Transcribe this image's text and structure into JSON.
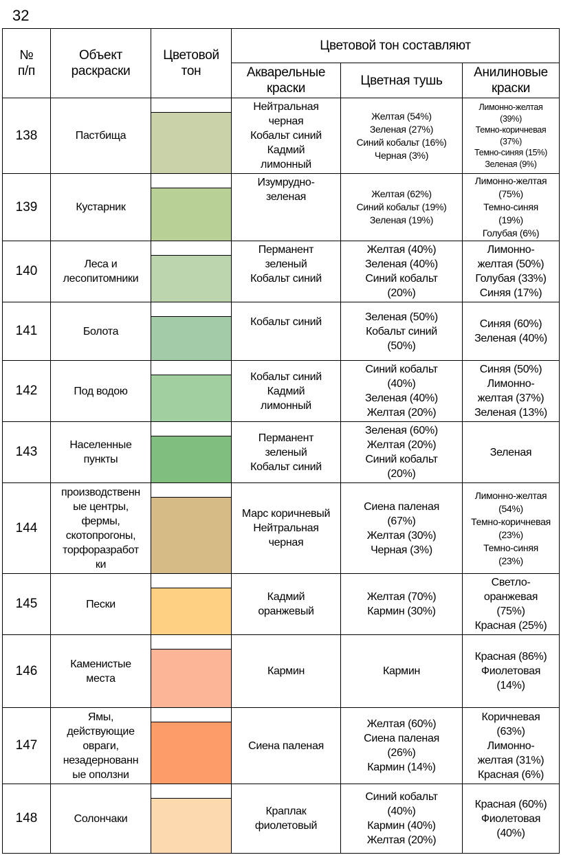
{
  "page_number": "32",
  "headers": {
    "num": "№\nп/п",
    "object": "Объект\nраскраски",
    "tone": "Цветовой\nтон",
    "group": "Цветовой тон составляют",
    "watercolor": "Акварельные\nкраски",
    "ink": "Цветная тушь",
    "aniline": "Анилиновые\nкраски"
  },
  "rows": [
    {
      "num": "138",
      "object": "Пастбища",
      "color": "#c9d2a9",
      "watercolor": "Нейтральная\nчерная\nКобальт синий\nКадмий\nлимонный",
      "ink": "Желтая (54%)\nЗеленая (27%)\nСиний кобальт (16%)\nЧерная (3%)",
      "aniline": "Лимонно-желтая\n(39%)\nТемно-коричневая\n(37%)\nТемно-синяя (15%)\nЗеленая (9%)"
    },
    {
      "num": "139",
      "object": "Кустарник",
      "color": "#b8d095",
      "watercolor": "Изумрудно-\nзеленая",
      "ink": "Желтая (62%)\nСиний кобальт (19%)\nЗеленая (19%)",
      "aniline": "Лимонно-желтая\n(75%)\nТемно-синяя\n(19%)\nГолубая (6%)"
    },
    {
      "num": "140",
      "object": "Леса и\nлесопитомники",
      "color": "#bcd4ae",
      "watercolor": "Перманент\nзеленый\nКобальт синий",
      "ink": "Желтая (40%)\nЗеленая (40%)\nСиний кобальт\n(20%)",
      "aniline": "Лимонно-\nжелтая (50%)\nГолубая (33%)\nСиняя (17%)"
    },
    {
      "num": "141",
      "object": "Болота",
      "color": "#a4cba8",
      "watercolor": "Кобальт синий",
      "ink": "Зеленая (50%)\nКобальт синий\n(50%)",
      "aniline": "Синяя (60%)\nЗеленая (40%)"
    },
    {
      "num": "142",
      "object": "Под водою",
      "color": "#a2cfa0",
      "watercolor": "Кобальт синий\nКадмий\nлимонный",
      "ink": "Синий кобальт\n(40%)\nЗеленая (40%)\nЖелтая (20%)",
      "aniline": "Синяя (50%)\nЛимонно-\nжелтая (37%)\nЗеленая (13%)"
    },
    {
      "num": "143",
      "object": "Населенные\nпункты",
      "color": "#7fbe7f",
      "watercolor": "Перманент\nзеленый\nКобальт синий",
      "ink": "Зеленая (60%)\nЖелтая (20%)\nСиний кобальт\n(20%)",
      "aniline": "Зеленая"
    },
    {
      "num": "144",
      "object": "производственн\nые центры,\nфермы,\nскотопрогоны,\nторфоразработ\nки",
      "color": "#d5bb86",
      "watercolor": "Марс коричневый\nНейтральная\nчерная",
      "ink": "Сиена паленая\n(67%)\nЖелтая (30%)\nЧерная (3%)",
      "aniline": "Лимонно-желтая\n(54%)\nТемно-коричневая\n(23%)\nТемно-синяя\n(23%)"
    },
    {
      "num": "145",
      "object": "Пески",
      "color": "#fdd084",
      "watercolor": "Кадмий\nоранжевый",
      "ink": "Желтая (70%)\nКармин (30%)",
      "aniline": "Светло-\nоранжевая\n(75%)\nКрасная (25%)"
    },
    {
      "num": "146",
      "object": "Каменистые\nместа",
      "color": "#fcb597",
      "watercolor": "Кармин",
      "ink": "Кармин",
      "aniline": "Красная (86%)\nФиолетовая\n(14%)"
    },
    {
      "num": "147",
      "object": "Ямы,\nдействующие\nовраги,\nнезадернованн\nые оползни",
      "color": "#fd9c69",
      "watercolor": "Сиена паленая",
      "ink": "Желтая (60%)\nСиена паленая\n(26%)\nКармин (14%)",
      "aniline": "Коричневая\n(63%)\nЛимонно-\nжелтая (31%)\nКрасная (6%)"
    },
    {
      "num": "148",
      "object": "Солончаки",
      "color": "#fdd9ae",
      "watercolor": "Краплак\nфиолетовый",
      "ink": "Синий кобальт\n(40%)\nКармин (40%)\nЖелтая (20%)",
      "aniline": "Красная (60%)\nФиолетовая\n(40%)"
    }
  ]
}
